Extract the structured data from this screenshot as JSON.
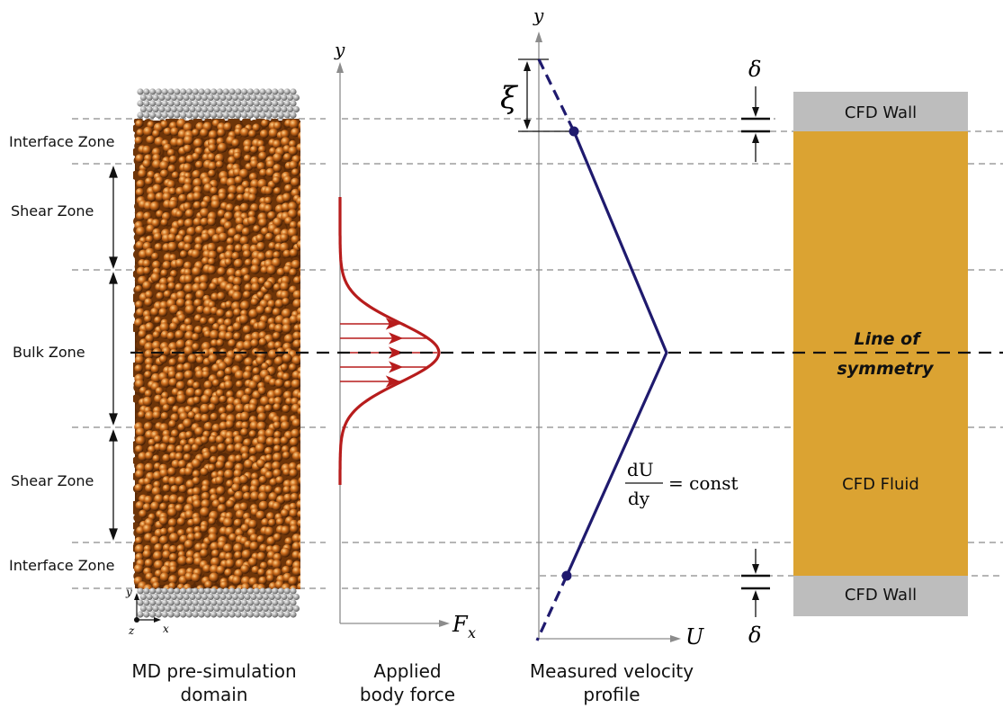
{
  "zones": {
    "interface_top": "Interface Zone",
    "shear_top": "Shear Zone",
    "bulk": "Bulk Zone",
    "shear_bottom": "Shear Zone",
    "interface_bottom": "Interface Zone"
  },
  "md_axes": {
    "y": "y",
    "x": "x",
    "z": "z"
  },
  "body_force": {
    "y_label": "y",
    "x_label": "F",
    "x_sub": "x"
  },
  "velocity": {
    "y_label": "y",
    "x_label": "U",
    "xi": "ξ",
    "grad_num": "dU",
    "grad_den": "dy",
    "grad_eq": "= const"
  },
  "cfd": {
    "top_wall": "CFD Wall",
    "fluid": "CFD Fluid",
    "bottom_wall": "CFD Wall",
    "symmetry_line1": "Line of",
    "symmetry_line2": "symmetry",
    "delta_top": "δ",
    "delta_bottom": "δ"
  },
  "captions": {
    "md_line1": "MD pre-simulation",
    "md_line2": "domain",
    "force_line1": "Applied",
    "force_line2": "body force",
    "velocity_line1": "Measured velocity",
    "velocity_line2": "profile"
  },
  "colors": {
    "particles": "#c9691a",
    "wall_atoms": "#a8a8a8",
    "force_curve": "#b71c1c",
    "velocity_line": "#1f1a6e",
    "cfd_wall": "#bdbdbd",
    "cfd_fluid": "#dba332"
  }
}
